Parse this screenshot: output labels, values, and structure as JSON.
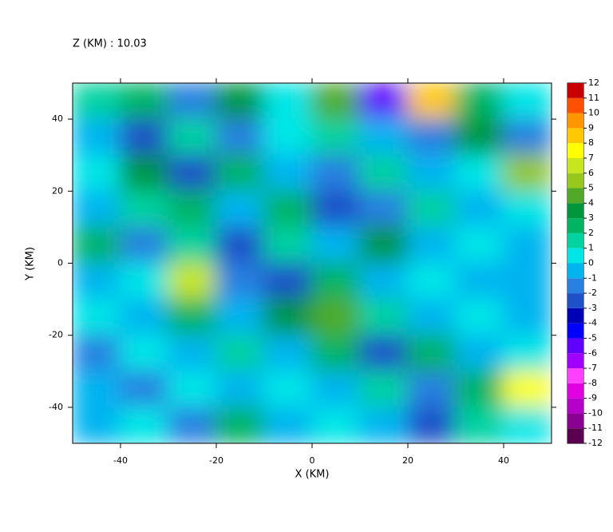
{
  "chart_data": {
    "type": "heatmap",
    "title": "Z (KM) : 10.03",
    "x_label": "X (KM)",
    "y_label": "Y (KM)",
    "xlim": [
      -50,
      50
    ],
    "ylim": [
      -50,
      50
    ],
    "xticks": [
      -40,
      -20,
      0,
      20,
      40
    ],
    "yticks": [
      -40,
      -20,
      0,
      20,
      40
    ],
    "z": [
      [
        1,
        2,
        -2,
        3,
        0,
        4,
        -6,
        8,
        2,
        0
      ],
      [
        -1,
        -3,
        1,
        -2,
        0,
        1,
        -1,
        -2,
        3,
        -2
      ],
      [
        0,
        3,
        -3,
        2,
        -1,
        -2,
        1,
        -1,
        0,
        5
      ],
      [
        -1,
        1,
        2,
        -1,
        2,
        -3,
        -2,
        1,
        -1,
        0
      ],
      [
        2,
        -2,
        1,
        -3,
        1,
        -1,
        3,
        -1,
        0,
        -1
      ],
      [
        -1,
        0,
        6,
        -2,
        -3,
        2,
        -1,
        0,
        -1,
        -1
      ],
      [
        0,
        -1,
        2,
        -1,
        3,
        4,
        1,
        -1,
        0,
        -1
      ],
      [
        -2,
        0,
        -1,
        1,
        -1,
        2,
        -3,
        2,
        -1,
        0
      ],
      [
        -1,
        -2,
        0,
        -1,
        0,
        -1,
        1,
        -2,
        2,
        7
      ],
      [
        -1,
        0,
        -2,
        2,
        -1,
        0,
        -1,
        -3,
        1,
        0
      ]
    ],
    "colorbar_ticks": [
      -12,
      -11,
      -10,
      -9,
      -8,
      -7,
      -6,
      -5,
      -4,
      -3,
      -2,
      -1,
      0,
      1,
      2,
      3,
      4,
      5,
      6,
      7,
      8,
      9,
      10,
      11,
      12
    ],
    "colors": [
      "#5a0050",
      "#8a0090",
      "#b400c8",
      "#e000e0",
      "#ff40ff",
      "#a000ff",
      "#6000ff",
      "#0000ff",
      "#0000b4",
      "#1e50c8",
      "#2880e0",
      "#00b4f0",
      "#00e6e6",
      "#00d2a0",
      "#00b464",
      "#00963c",
      "#50aa28",
      "#96c81e",
      "#c8e61e",
      "#ffff00",
      "#ffc800",
      "#ff9600",
      "#ff5000",
      "#c80000"
    ]
  }
}
